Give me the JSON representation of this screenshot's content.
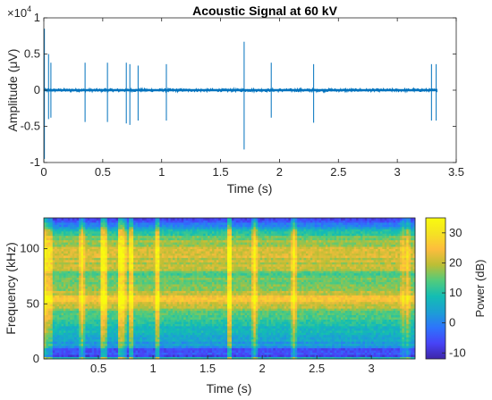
{
  "chart_data": [
    {
      "type": "line",
      "title": "Acoustic Signal  at 60 kV",
      "xlabel": "Time (s)",
      "ylabel": "Amplitude (μV)",
      "y_exponent_label": "×10",
      "y_exponent": "4",
      "xlim": [
        0,
        3.5
      ],
      "ylim": [
        -1,
        1
      ],
      "x_ticks": [
        0,
        0.5,
        1,
        1.5,
        2,
        2.5,
        3,
        3.5
      ],
      "x_tick_labels": [
        "0",
        "0.5",
        "1",
        "1.5",
        "2",
        "2.5",
        "3",
        "3.5"
      ],
      "y_ticks": [
        -1,
        -0.5,
        0,
        0.5,
        1
      ],
      "y_tick_labels": [
        "-1",
        "-0.5",
        "0",
        "0.5",
        "1"
      ],
      "line_color": "#0072BD",
      "signal_extent": [
        0,
        3.34
      ],
      "baseline_noise": 0.02,
      "spikes": [
        {
          "t": 0.005,
          "up": 0.85,
          "down": -0.95
        },
        {
          "t": 0.04,
          "up": 0.5,
          "down": -0.4
        },
        {
          "t": 0.06,
          "up": 0.38,
          "down": -0.38
        },
        {
          "t": 0.35,
          "up": 0.38,
          "down": -0.44
        },
        {
          "t": 0.54,
          "up": 0.38,
          "down": -0.44
        },
        {
          "t": 0.7,
          "up": 0.38,
          "down": -0.46
        },
        {
          "t": 0.73,
          "up": 0.36,
          "down": -0.48
        },
        {
          "t": 0.8,
          "up": 0.34,
          "down": -0.42
        },
        {
          "t": 1.04,
          "up": 0.36,
          "down": -0.42
        },
        {
          "t": 1.7,
          "up": 0.67,
          "down": -0.82
        },
        {
          "t": 1.93,
          "up": 0.38,
          "down": -0.38
        },
        {
          "t": 2.29,
          "up": 0.36,
          "down": -0.45
        },
        {
          "t": 3.29,
          "up": 0.36,
          "down": -0.42
        },
        {
          "t": 3.33,
          "up": 0.36,
          "down": -0.42
        }
      ]
    },
    {
      "type": "heatmap",
      "xlabel": "Time (s)",
      "ylabel": "Frequency (kHz)",
      "xlim": [
        0,
        3.4
      ],
      "ylim": [
        0,
        128
      ],
      "x_ticks": [
        0.5,
        1,
        1.5,
        2,
        2.5,
        3
      ],
      "x_tick_labels": [
        "0.5",
        "1",
        "1.5",
        "2",
        "2.5",
        "3"
      ],
      "y_ticks": [
        0,
        50,
        100
      ],
      "y_tick_labels": [
        "0",
        "50",
        "100"
      ],
      "colorbar": {
        "label": "Power (dB)",
        "clim": [
          -12,
          35
        ],
        "ticks": [
          -10,
          0,
          10,
          20,
          30
        ],
        "tick_labels": [
          "-10",
          "0",
          "10",
          "20",
          "30"
        ],
        "colormap": [
          "#3E26A8",
          "#4743F7",
          "#2D74FC",
          "#1C9FD4",
          "#13BDB3",
          "#52CB7C",
          "#BCBE35",
          "#FDBD3D",
          "#F5E223",
          "#F9FB0E"
        ]
      },
      "bright_columns": [
        {
          "t": 0.005,
          "strength": 1.0
        },
        {
          "t": 0.04,
          "strength": 0.7
        },
        {
          "t": 0.06,
          "strength": 0.6
        },
        {
          "t": 0.35,
          "strength": 0.85
        },
        {
          "t": 0.54,
          "strength": 1.0
        },
        {
          "t": 0.56,
          "strength": 0.8
        },
        {
          "t": 0.7,
          "strength": 1.0
        },
        {
          "t": 0.73,
          "strength": 0.9
        },
        {
          "t": 0.8,
          "strength": 0.85
        },
        {
          "t": 1.04,
          "strength": 0.85
        },
        {
          "t": 1.7,
          "strength": 1.0
        },
        {
          "t": 1.93,
          "strength": 0.95
        },
        {
          "t": 2.29,
          "strength": 0.9
        },
        {
          "t": 3.29,
          "strength": 0.5
        },
        {
          "t": 3.33,
          "strength": 0.6
        }
      ]
    }
  ]
}
